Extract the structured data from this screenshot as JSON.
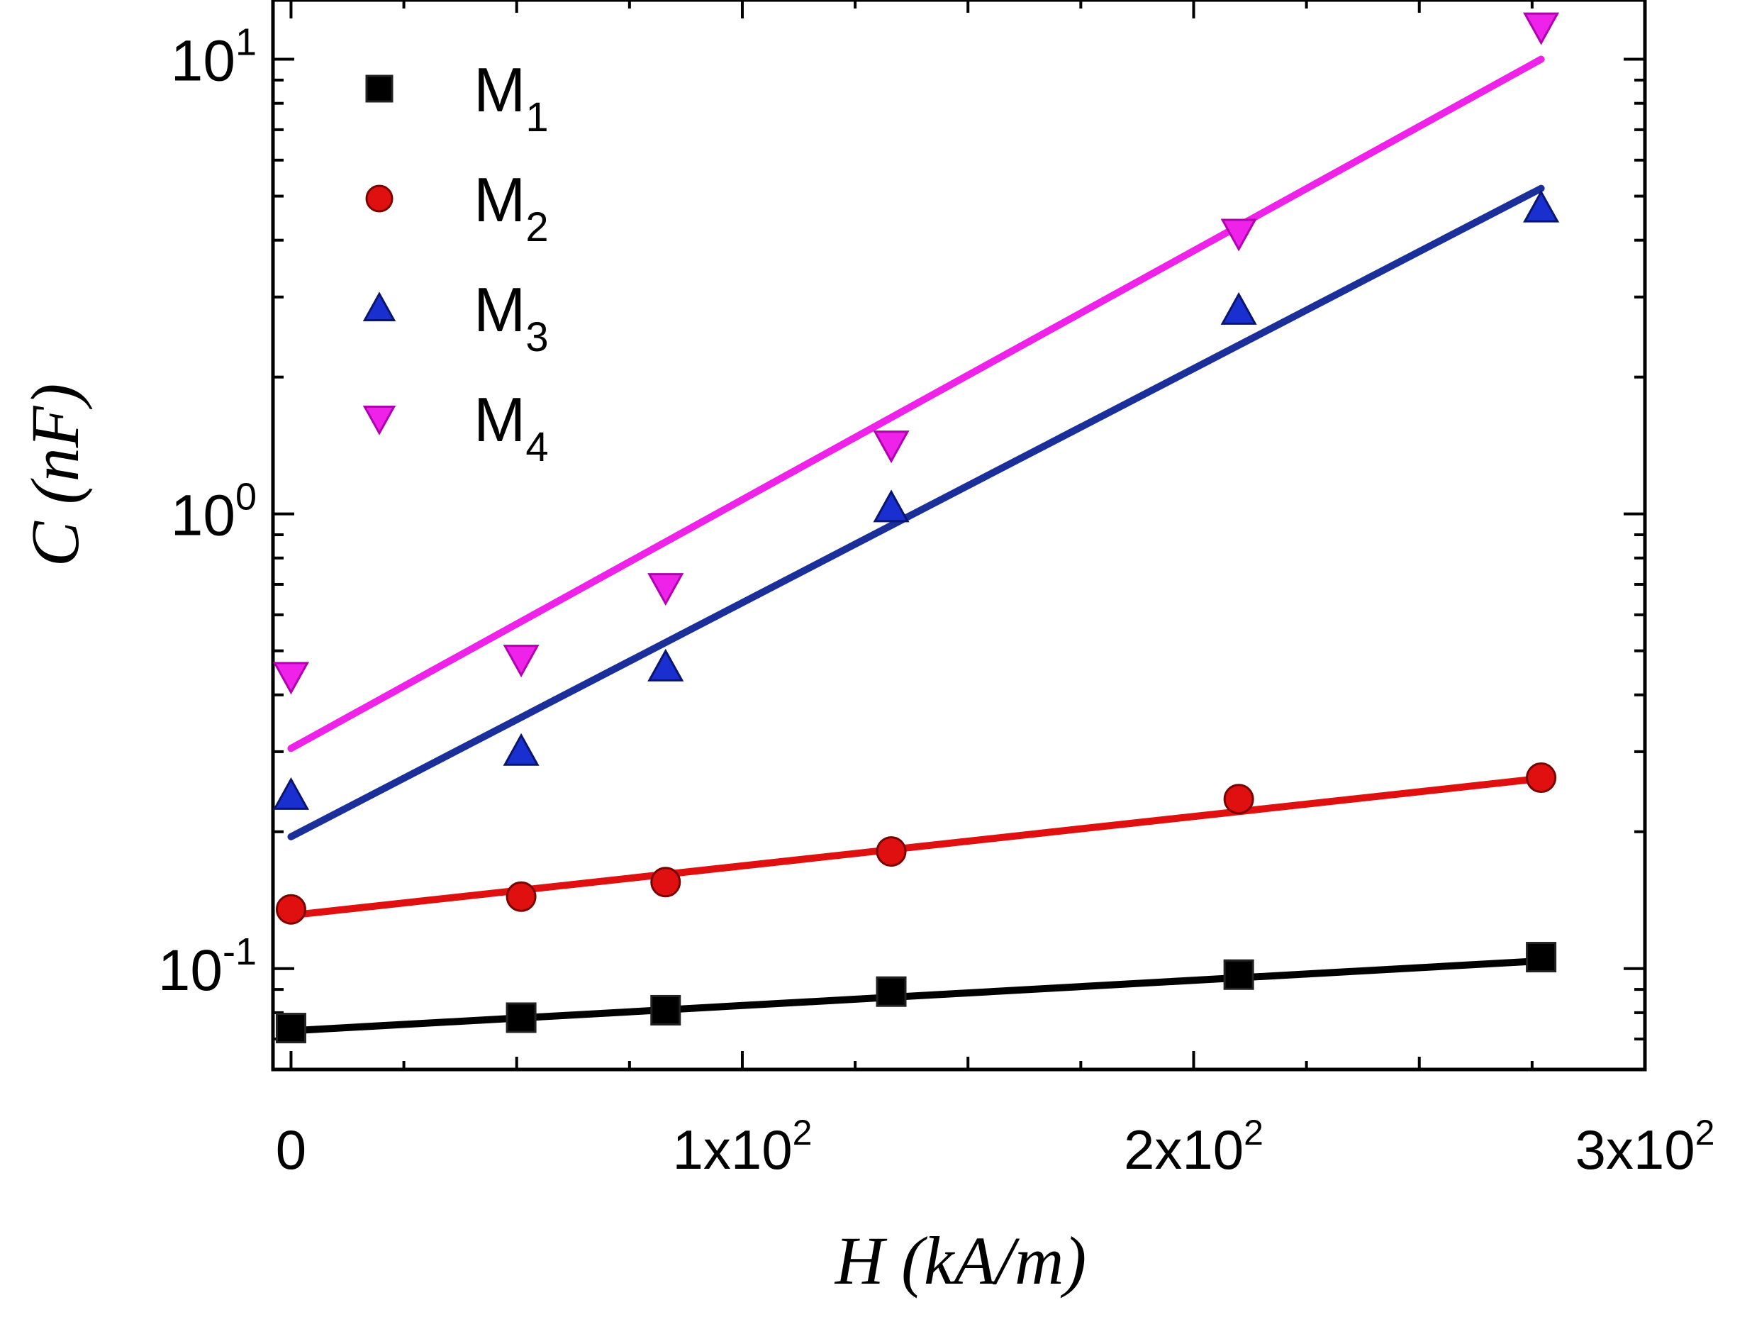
{
  "chart_data": {
    "type": "scatter",
    "title": "",
    "xlabel": "H (kA/m)",
    "ylabel": "C (nF)",
    "xscale": "linear",
    "yscale": "log",
    "xlim": [
      -4,
      300
    ],
    "ylim": [
      0.06,
      13.5
    ],
    "x_ticks": [
      {
        "value": 0,
        "base": "0",
        "exp": ""
      },
      {
        "value": 100,
        "base": "1x10",
        "exp": "2"
      },
      {
        "value": 200,
        "base": "2x10",
        "exp": "2"
      },
      {
        "value": 300,
        "base": "3x10",
        "exp": "2"
      }
    ],
    "y_ticks": [
      {
        "value": 0.1,
        "base": "10",
        "exp": "-1"
      },
      {
        "value": 1,
        "base": "10",
        "exp": "0"
      },
      {
        "value": 10,
        "base": "10",
        "exp": "1"
      }
    ],
    "legend_position": "top-left",
    "series": [
      {
        "name": "M",
        "sub": "1",
        "marker": "square",
        "color": "#000000",
        "x": [
          0,
          51,
          83,
          133,
          210,
          277
        ],
        "y": [
          0.074,
          0.078,
          0.081,
          0.089,
          0.097,
          0.106
        ],
        "fit": {
          "x": [
            0,
            277
          ],
          "y": [
            0.073,
            0.104
          ]
        }
      },
      {
        "name": "M",
        "sub": "2",
        "marker": "circle",
        "color": "#e01010",
        "x": [
          0,
          51,
          83,
          133,
          210,
          277
        ],
        "y": [
          0.135,
          0.144,
          0.155,
          0.181,
          0.236,
          0.263
        ],
        "fit": {
          "x": [
            0,
            277
          ],
          "y": [
            0.131,
            0.262
          ]
        }
      },
      {
        "name": "M",
        "sub": "3",
        "marker": "triangle-up",
        "color": "#1a2fcf",
        "x": [
          0,
          51,
          83,
          133,
          210,
          277
        ],
        "y": [
          0.24,
          0.3,
          0.46,
          1.03,
          2.8,
          4.7
        ],
        "fit": {
          "x": [
            0,
            277
          ],
          "y": [
            0.195,
            5.2
          ]
        }
      },
      {
        "name": "M",
        "sub": "4",
        "marker": "triangle-down",
        "color": "#ee22e8",
        "x": [
          0,
          51,
          83,
          133,
          210,
          277
        ],
        "y": [
          0.44,
          0.48,
          0.69,
          1.42,
          4.15,
          11.8
        ],
        "fit": {
          "x": [
            0,
            277
          ],
          "y": [
            0.305,
            10.0
          ]
        }
      }
    ],
    "line_colors": [
      "#000000",
      "#e01010",
      "#1a2f9a",
      "#ee22e8"
    ]
  }
}
